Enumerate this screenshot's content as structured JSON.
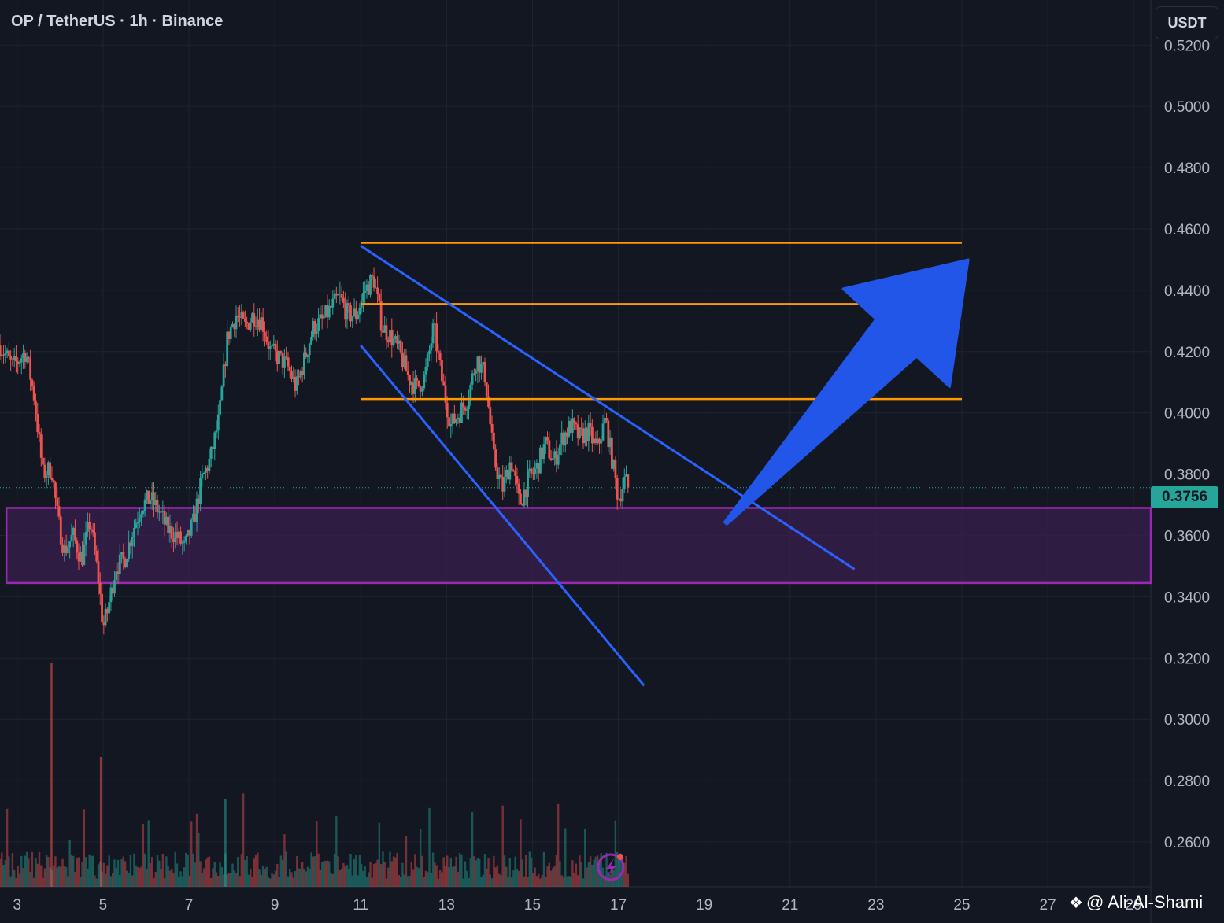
{
  "header": {
    "title": "OP / TetherUS · 1h · Binance"
  },
  "axis": {
    "unit_button": "USDT"
  },
  "price_badge": "0.3756",
  "watermark": {
    "text": "@ Ali-Al-Shami",
    "icon": "binance-logo-icon"
  },
  "colors": {
    "background": "#131722",
    "grid": "#1f2330",
    "up": "#26a69a",
    "down": "#ef5350",
    "channel": "#2962ff",
    "levels": "#ff9800",
    "zone_border": "#9c27b0",
    "zone_fill": "#3a1f4f",
    "arrow": "#2156e8"
  },
  "chart_data": {
    "type": "candlestick",
    "symbol": "OP / TetherUS",
    "interval": "1h",
    "exchange": "Binance",
    "y_axis": {
      "unit": "USDT",
      "range": [
        0.25,
        0.527
      ],
      "ticks": [
        "0.5200",
        "0.5000",
        "0.4800",
        "0.4600",
        "0.4400",
        "0.4200",
        "0.4000",
        "0.3800",
        "0.3600",
        "0.3400",
        "0.3200",
        "0.3000",
        "0.2800",
        "0.2600"
      ]
    },
    "x_axis": {
      "unit": "day",
      "range": [
        2.6,
        29.4
      ],
      "ticks": [
        {
          "v": 3,
          "label": "3"
        },
        {
          "v": 5,
          "label": "5"
        },
        {
          "v": 7,
          "label": "7"
        },
        {
          "v": 9,
          "label": "9"
        },
        {
          "v": 11,
          "label": "11"
        },
        {
          "v": 13,
          "label": "13"
        },
        {
          "v": 15,
          "label": "15"
        },
        {
          "v": 17,
          "label": "17"
        },
        {
          "v": 19,
          "label": "19"
        },
        {
          "v": 21,
          "label": "21"
        },
        {
          "v": 23,
          "label": "23"
        },
        {
          "v": 25,
          "label": "25"
        },
        {
          "v": 27,
          "label": "27"
        },
        {
          "v": 29,
          "label": "29"
        }
      ]
    },
    "grid": true,
    "last_price": 0.3756,
    "price_path": [
      [
        2.6,
        0.422
      ],
      [
        2.9,
        0.415
      ],
      [
        3.2,
        0.42
      ],
      [
        3.4,
        0.405
      ],
      [
        3.6,
        0.38
      ],
      [
        3.8,
        0.382
      ],
      [
        3.95,
        0.365
      ],
      [
        4.1,
        0.355
      ],
      [
        4.3,
        0.36
      ],
      [
        4.5,
        0.352
      ],
      [
        4.7,
        0.365
      ],
      [
        4.9,
        0.345
      ],
      [
        5.0,
        0.33
      ],
      [
        5.1,
        0.335
      ],
      [
        5.3,
        0.35
      ],
      [
        5.5,
        0.352
      ],
      [
        5.7,
        0.362
      ],
      [
        5.9,
        0.37
      ],
      [
        6.1,
        0.372
      ],
      [
        6.3,
        0.368
      ],
      [
        6.5,
        0.362
      ],
      [
        6.7,
        0.36
      ],
      [
        6.9,
        0.356
      ],
      [
        7.1,
        0.364
      ],
      [
        7.3,
        0.378
      ],
      [
        7.5,
        0.385
      ],
      [
        7.7,
        0.398
      ],
      [
        7.9,
        0.425
      ],
      [
        8.1,
        0.432
      ],
      [
        8.3,
        0.428
      ],
      [
        8.5,
        0.432
      ],
      [
        8.7,
        0.43
      ],
      [
        8.9,
        0.42
      ],
      [
        9.1,
        0.418
      ],
      [
        9.3,
        0.415
      ],
      [
        9.5,
        0.408
      ],
      [
        9.7,
        0.418
      ],
      [
        9.9,
        0.428
      ],
      [
        10.1,
        0.43
      ],
      [
        10.3,
        0.434
      ],
      [
        10.5,
        0.438
      ],
      [
        10.7,
        0.432
      ],
      [
        10.9,
        0.432
      ],
      [
        11.1,
        0.44
      ],
      [
        11.3,
        0.444
      ],
      [
        11.5,
        0.428
      ],
      [
        11.7,
        0.425
      ],
      [
        11.9,
        0.42
      ],
      [
        12.1,
        0.412
      ],
      [
        12.3,
        0.408
      ],
      [
        12.5,
        0.412
      ],
      [
        12.7,
        0.428
      ],
      [
        12.9,
        0.41
      ],
      [
        13.1,
        0.396
      ],
      [
        13.3,
        0.4
      ],
      [
        13.5,
        0.405
      ],
      [
        13.7,
        0.418
      ],
      [
        13.9,
        0.412
      ],
      [
        14.1,
        0.385
      ],
      [
        14.3,
        0.375
      ],
      [
        14.5,
        0.385
      ],
      [
        14.7,
        0.37
      ],
      [
        14.9,
        0.378
      ],
      [
        15.1,
        0.382
      ],
      [
        15.3,
        0.39
      ],
      [
        15.5,
        0.384
      ],
      [
        15.7,
        0.392
      ],
      [
        15.9,
        0.396
      ],
      [
        16.1,
        0.392
      ],
      [
        16.3,
        0.394
      ],
      [
        16.5,
        0.388
      ],
      [
        16.7,
        0.398
      ],
      [
        16.85,
        0.385
      ],
      [
        17.0,
        0.372
      ],
      [
        17.15,
        0.378
      ],
      [
        17.25,
        0.3756
      ]
    ],
    "annotations": {
      "levels": [
        0.4555,
        0.4355,
        0.4045
      ],
      "levels_x": [
        11.0,
        25.0
      ],
      "zone": {
        "top": 0.369,
        "bottom": 0.3445,
        "x_start": 2.75
      },
      "channel_upper": [
        [
          11.0,
          0.4545
        ],
        [
          22.5,
          0.349
        ]
      ],
      "channel_lower": [
        [
          11.0,
          0.422
        ],
        [
          17.6,
          0.311
        ]
      ],
      "arrow": {
        "from": [
          19.5,
          0.364
        ],
        "to": [
          25.15,
          0.45
        ]
      }
    }
  }
}
